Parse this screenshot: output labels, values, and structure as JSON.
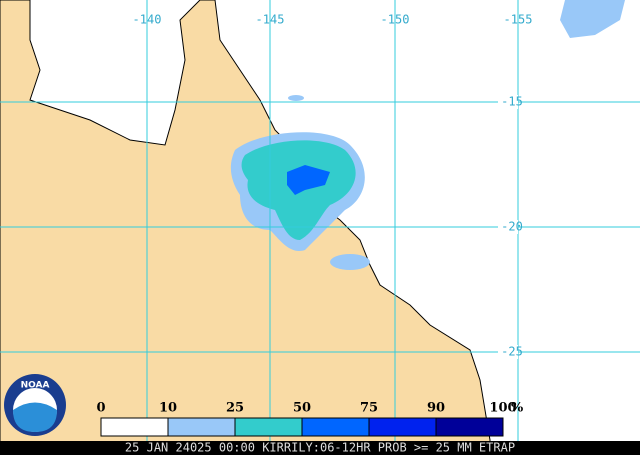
{
  "header": {
    "logo": "NOAA"
  },
  "axes": {
    "longitude_labels": [
      -140,
      -145,
      -150,
      -155
    ],
    "latitude_labels": [
      -15,
      -20,
      -25
    ]
  },
  "legend": {
    "labels": [
      0,
      10,
      25,
      50,
      75,
      90,
      100
    ],
    "unit": "%",
    "colors": [
      "#ffffff",
      "#99c8f8",
      "#33cccc",
      "#0066ff",
      "#0022ee",
      "#000099"
    ]
  },
  "footer": {
    "caption": "25 JAN 24025 00:00 KIRRILY:06-12HR PROB >= 25 MM ETRAP"
  }
}
